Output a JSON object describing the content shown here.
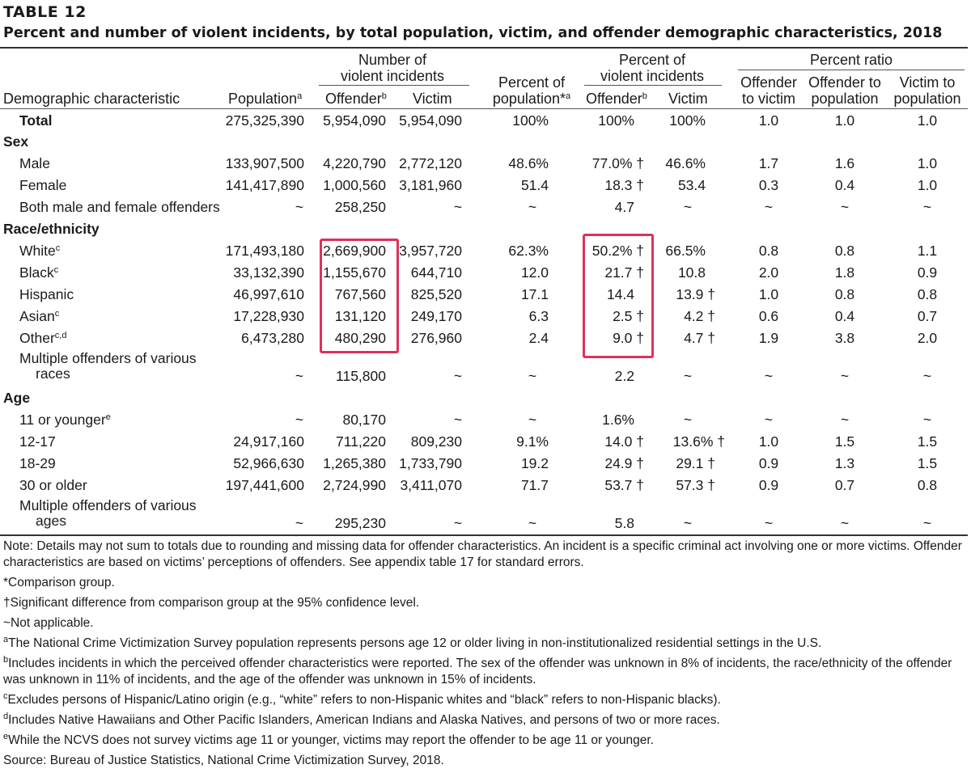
{
  "table_number": "TABLE 12",
  "title": "Percent and number of violent incidents, by total population, victim, and offender demographic characteristics, 2018",
  "headers": {
    "demographic": "Demographic characteristic",
    "population": "Population",
    "population_sup": "a",
    "num_group_line1": "Number of",
    "num_group_line2": "violent incidents",
    "num_offender": "Offender",
    "num_offender_sup": "b",
    "num_victim": "Victim",
    "pct_pop_line1": "Percent of",
    "pct_pop_line2": "population*",
    "pct_pop_sup": "a",
    "pct_group_line1": "Percent of",
    "pct_group_line2": "violent incidents",
    "pct_offender": "Offender",
    "pct_offender_sup": "b",
    "pct_victim": "Victim",
    "ratio_group": "Percent ratio",
    "ratio_ov_line1": "Offender",
    "ratio_ov_line2": "to victim",
    "ratio_op_line1": "Offender to",
    "ratio_op_line2": "population",
    "ratio_vp_line1": "Victim to",
    "ratio_vp_line2": "population"
  },
  "rows": {
    "total": {
      "label": "Total",
      "population": "275,325,390",
      "num_offender": "5,954,090",
      "num_victim": "5,954,090",
      "pct_population": "100%",
      "pct_offender": "100%",
      "pct_victim": "100%",
      "ratio_ov": "1.0",
      "ratio_op": "1.0",
      "ratio_vp": "1.0"
    },
    "sex_heading": "Sex",
    "male": {
      "label": "Male",
      "population": "133,907,500",
      "num_offender": "4,220,790",
      "num_victim": "2,772,120",
      "pct_population": "48.6%",
      "pct_offender": "77.0% †",
      "pct_victim": "46.6%",
      "ratio_ov": "1.7",
      "ratio_op": "1.6",
      "ratio_vp": "1.0"
    },
    "female": {
      "label": "Female",
      "population": "141,417,890",
      "num_offender": "1,000,560",
      "num_victim": "3,181,960",
      "pct_population": "51.4",
      "pct_offender": "18.3 †",
      "pct_victim": "53.4",
      "ratio_ov": "0.3",
      "ratio_op": "0.4",
      "ratio_vp": "1.0"
    },
    "both_sex": {
      "label": "Both male and female offenders",
      "population": "~",
      "num_offender": "258,250",
      "num_victim": "~",
      "pct_population": "~",
      "pct_offender": "4.7",
      "pct_victim": "~",
      "ratio_ov": "~",
      "ratio_op": "~",
      "ratio_vp": "~"
    },
    "race_heading": "Race/ethnicity",
    "white": {
      "label": "White",
      "sup": "c",
      "population": "171,493,180",
      "num_offender": "2,669,900",
      "num_victim": "3,957,720",
      "pct_population": "62.3%",
      "pct_offender": "50.2% †",
      "pct_victim": "66.5%",
      "ratio_ov": "0.8",
      "ratio_op": "0.8",
      "ratio_vp": "1.1"
    },
    "black": {
      "label": "Black",
      "sup": "c",
      "population": "33,132,390",
      "num_offender": "1,155,670",
      "num_victim": "644,710",
      "pct_population": "12.0",
      "pct_offender": "21.7 †",
      "pct_victim": "10.8",
      "ratio_ov": "2.0",
      "ratio_op": "1.8",
      "ratio_vp": "0.9"
    },
    "hispanic": {
      "label": "Hispanic",
      "population": "46,997,610",
      "num_offender": "767,560",
      "num_victim": "825,520",
      "pct_population": "17.1",
      "pct_offender": "14.4",
      "pct_victim": "13.9 †",
      "ratio_ov": "1.0",
      "ratio_op": "0.8",
      "ratio_vp": "0.8"
    },
    "asian": {
      "label": "Asian",
      "sup": "c",
      "population": "17,228,930",
      "num_offender": "131,120",
      "num_victim": "249,170",
      "pct_population": "6.3",
      "pct_offender": "2.5 †",
      "pct_victim": "4.2 †",
      "ratio_ov": "0.6",
      "ratio_op": "0.4",
      "ratio_vp": "0.7"
    },
    "other": {
      "label": "Other",
      "sup": "c,d",
      "population": "6,473,280",
      "num_offender": "480,290",
      "num_victim": "276,960",
      "pct_population": "2.4",
      "pct_offender": "9.0 †",
      "pct_victim": "4.7 †",
      "ratio_ov": "1.9",
      "ratio_op": "3.8",
      "ratio_vp": "2.0"
    },
    "multi_race": {
      "label_line1": "Multiple offenders of various",
      "label_line2": "races",
      "population": "~",
      "num_offender": "115,800",
      "num_victim": "~",
      "pct_population": "~",
      "pct_offender": "2.2",
      "pct_victim": "~",
      "ratio_ov": "~",
      "ratio_op": "~",
      "ratio_vp": "~"
    },
    "age_heading": "Age",
    "age11": {
      "label": "11 or younger",
      "sup": "e",
      "population": "~",
      "num_offender": "80,170",
      "num_victim": "~",
      "pct_population": "~",
      "pct_offender": "1.6%",
      "pct_victim": "~",
      "ratio_ov": "~",
      "ratio_op": "~",
      "ratio_vp": "~"
    },
    "age12": {
      "label": "12-17",
      "population": "24,917,160",
      "num_offender": "711,220",
      "num_victim": "809,230",
      "pct_population": "9.1%",
      "pct_offender": "14.0 †",
      "pct_victim": "13.6% †",
      "ratio_ov": "1.0",
      "ratio_op": "1.5",
      "ratio_vp": "1.5"
    },
    "age18": {
      "label": "18-29",
      "population": "52,966,630",
      "num_offender": "1,265,380",
      "num_victim": "1,733,790",
      "pct_population": "19.2",
      "pct_offender": "24.9 †",
      "pct_victim": "29.1 †",
      "ratio_ov": "0.9",
      "ratio_op": "1.3",
      "ratio_vp": "1.5"
    },
    "age30": {
      "label": "30 or older",
      "population": "197,441,600",
      "num_offender": "2,724,990",
      "num_victim": "3,411,070",
      "pct_population": "71.7",
      "pct_offender": "53.7 †",
      "pct_victim": "57.3 †",
      "ratio_ov": "0.9",
      "ratio_op": "0.7",
      "ratio_vp": "0.8"
    },
    "multi_age": {
      "label_line1": "Multiple offenders of various",
      "label_line2": "ages",
      "population": "~",
      "num_offender": "295,230",
      "num_victim": "~",
      "pct_population": "~",
      "pct_offender": "5.8",
      "pct_victim": "~",
      "ratio_ov": "~",
      "ratio_op": "~",
      "ratio_vp": "~"
    }
  },
  "notes": {
    "note": "Note: Details may not sum to totals due to rounding and missing data for offender characteristics. An incident is a specific criminal act involving one or more victims. Offender characteristics are based on victims’ perceptions of offenders. See appendix table 17 for standard errors.",
    "comparison": "*Comparison group.",
    "significant": "†Significant difference from comparison group at the 95% confidence level.",
    "not_applicable": "~Not applicable.",
    "a_sup": "a",
    "a": "The National Crime Victimization Survey population represents persons age 12 or older living in non-institutionalized residential settings in the U.S.",
    "b_sup": "b",
    "b": "Includes incidents in which the perceived offender characteristics were reported. The sex of the offender was unknown in 8% of incidents, the race/ethnicity of the offender was unknown in 11% of incidents, and the age of the offender was unknown in 15% of incidents.",
    "c_sup": "c",
    "c": "Excludes persons of Hispanic/Latino origin (e.g., “white” refers to non-Hispanic whites and “black” refers to non-Hispanic blacks).",
    "d_sup": "d",
    "d": "Includes Native Hawaiians and Other Pacific Islanders, American Indians and Alaska Natives, and persons of two or more races.",
    "e_sup": "e",
    "e": "While the NCVS does not survey victims age 11 or younger, victims may report the offender to be age 11 or younger.",
    "source": "Source: Bureau of Justice Statistics, National Crime Victimization Survey, 2018."
  },
  "colors": {
    "highlight": "#e0305a",
    "text": "#1a1a1a"
  }
}
